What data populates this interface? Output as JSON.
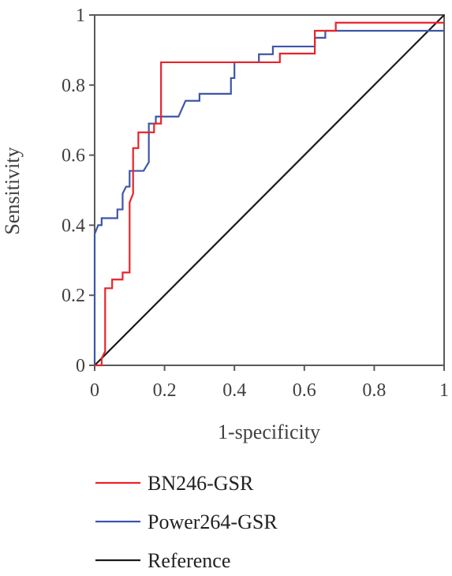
{
  "chart_data": {
    "type": "line",
    "title": "",
    "xlabel": "1-specificity",
    "ylabel": "Sensitivity",
    "xlim": [
      0,
      1
    ],
    "ylim": [
      0,
      1
    ],
    "x_ticks": [
      "0",
      "0.2",
      "0.4",
      "0.6",
      "0.8",
      "1"
    ],
    "y_ticks": [
      "0",
      "0.2",
      "0.4",
      "0.6",
      "0.8",
      "1"
    ],
    "grid": false,
    "legend_position": "bottom",
    "series": [
      {
        "name": "BN246-GSR",
        "color": "#e8242a",
        "points": [
          [
            0,
            0
          ],
          [
            0.02,
            0
          ],
          [
            0.02,
            0.02
          ],
          [
            0.03,
            0.04
          ],
          [
            0.03,
            0.22
          ],
          [
            0.05,
            0.22
          ],
          [
            0.05,
            0.245
          ],
          [
            0.08,
            0.245
          ],
          [
            0.08,
            0.265
          ],
          [
            0.1,
            0.265
          ],
          [
            0.1,
            0.465
          ],
          [
            0.11,
            0.49
          ],
          [
            0.11,
            0.62
          ],
          [
            0.125,
            0.62
          ],
          [
            0.125,
            0.665
          ],
          [
            0.17,
            0.665
          ],
          [
            0.17,
            0.69
          ],
          [
            0.19,
            0.69
          ],
          [
            0.19,
            0.865
          ],
          [
            0.47,
            0.865
          ],
          [
            0.47,
            0.865
          ],
          [
            0.53,
            0.865
          ],
          [
            0.53,
            0.89
          ],
          [
            0.63,
            0.89
          ],
          [
            0.63,
            0.955
          ],
          [
            0.69,
            0.955
          ],
          [
            0.69,
            0.978
          ],
          [
            1,
            0.978
          ]
        ]
      },
      {
        "name": "Power264-GSR",
        "color": "#3e56a8",
        "points": [
          [
            0,
            0
          ],
          [
            0,
            0.375
          ],
          [
            0.01,
            0.4
          ],
          [
            0.02,
            0.4
          ],
          [
            0.02,
            0.42
          ],
          [
            0.065,
            0.42
          ],
          [
            0.065,
            0.445
          ],
          [
            0.08,
            0.445
          ],
          [
            0.08,
            0.49
          ],
          [
            0.09,
            0.51
          ],
          [
            0.1,
            0.51
          ],
          [
            0.1,
            0.555
          ],
          [
            0.14,
            0.555
          ],
          [
            0.155,
            0.58
          ],
          [
            0.155,
            0.69
          ],
          [
            0.175,
            0.69
          ],
          [
            0.175,
            0.71
          ],
          [
            0.24,
            0.71
          ],
          [
            0.26,
            0.755
          ],
          [
            0.3,
            0.755
          ],
          [
            0.3,
            0.775
          ],
          [
            0.39,
            0.775
          ],
          [
            0.39,
            0.82
          ],
          [
            0.4,
            0.82
          ],
          [
            0.4,
            0.865
          ],
          [
            0.47,
            0.865
          ],
          [
            0.47,
            0.888
          ],
          [
            0.51,
            0.888
          ],
          [
            0.51,
            0.91
          ],
          [
            0.63,
            0.91
          ],
          [
            0.63,
            0.935
          ],
          [
            0.66,
            0.935
          ],
          [
            0.66,
            0.955
          ],
          [
            1,
            0.955
          ]
        ]
      },
      {
        "name": "Reference",
        "color": "#1a1a1a",
        "points": [
          [
            0,
            0
          ],
          [
            1,
            1
          ]
        ]
      }
    ]
  }
}
